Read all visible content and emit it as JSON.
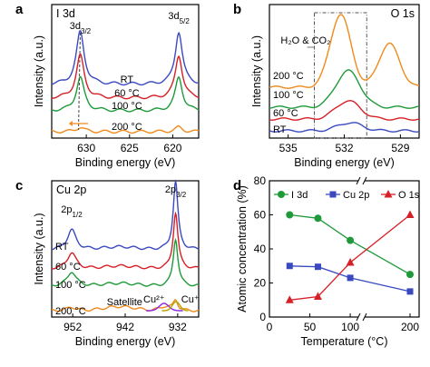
{
  "chart_data": [
    {
      "panel": "a",
      "type": "line",
      "title": "I 3d",
      "xlabel": "Binding energy (eV)",
      "ylabel": "Intensity (a.u.)",
      "xlim": [
        634,
        617
      ],
      "x_reversed": true,
      "xticks": [
        630,
        625,
        620
      ],
      "peaks": [
        {
          "label": "3d",
          "sub": "3/2",
          "x": 630.7
        },
        {
          "label": "3d",
          "sub": "5/2",
          "x": 619.3
        }
      ],
      "series": [
        {
          "name": "RT",
          "color": "#3a49c0",
          "peak_heights": [
            1.0,
            1.0
          ]
        },
        {
          "name": "60 °C",
          "color": "#d62027",
          "peak_heights": [
            0.85,
            0.85
          ]
        },
        {
          "name": "100 °C",
          "color": "#1f9a3a",
          "peak_heights": [
            0.7,
            0.7
          ]
        },
        {
          "name": "200 °C",
          "color": "#f08a1c",
          "peak_heights": [
            0.08,
            0.08
          ]
        }
      ],
      "annotations": []
    },
    {
      "panel": "b",
      "type": "line",
      "title": "O 1s",
      "xlabel": "Binding energy (eV)",
      "ylabel": "Intensity (a.u.)",
      "xlim": [
        536,
        528
      ],
      "x_reversed": true,
      "xticks": [
        535,
        532,
        529
      ],
      "annotations": [
        "H₂O & CO₂"
      ],
      "series": [
        {
          "name": "200 °C",
          "color": "#f08a1c",
          "peaks": [
            {
              "x": 532.2,
              "h": 1.0
            },
            {
              "x": 529.6,
              "h": 0.6
            }
          ]
        },
        {
          "name": "100 °C",
          "color": "#1f9a3a",
          "peaks": [
            {
              "x": 531.8,
              "h": 0.5
            }
          ]
        },
        {
          "name": "60 °C",
          "color": "#d62027",
          "peaks": [
            {
              "x": 531.8,
              "h": 0.35
            }
          ]
        },
        {
          "name": "RT",
          "color": "#3a49c0",
          "peaks": [
            {
              "x": 531.7,
              "h": 0.25
            }
          ]
        }
      ]
    },
    {
      "panel": "c",
      "type": "line",
      "title": "Cu 2p",
      "xlabel": "Binding energy (eV)",
      "ylabel": "Intensity (a.u.)",
      "xlim": [
        956,
        928
      ],
      "x_reversed": true,
      "xticks": [
        952,
        942,
        932
      ],
      "peaks": [
        {
          "label": "2p",
          "sub": "1/2",
          "x": 952.2
        },
        {
          "label": "2p",
          "sub": "3/2",
          "x": 932.4
        }
      ],
      "annotations": [
        "Satellite",
        "Cu²⁺",
        "Cu⁺"
      ],
      "series": [
        {
          "name": "RT",
          "color": "#3a49c0"
        },
        {
          "name": "60 °C",
          "color": "#d62027"
        },
        {
          "name": "100 °C",
          "color": "#1f9a3a"
        },
        {
          "name": "200 °C",
          "color": "#f08a1c"
        }
      ]
    },
    {
      "panel": "d",
      "type": "line",
      "xlabel": "Temperature (°C)",
      "ylabel": "Atomic concentration (%)",
      "ylim": [
        0,
        80
      ],
      "yticks": [
        0,
        20,
        40,
        60,
        80
      ],
      "xticks": [
        0,
        50,
        100,
        200
      ],
      "axis_break": true,
      "legend": "top",
      "x": [
        25,
        60,
        100,
        200
      ],
      "series": [
        {
          "name": "I 3d",
          "color": "#1f9a3a",
          "marker": "circle",
          "values": [
            60,
            58,
            45,
            25
          ]
        },
        {
          "name": "Cu 2p",
          "color": "#3a49c0",
          "marker": "square",
          "values": [
            30,
            29.5,
            23,
            15
          ]
        },
        {
          "name": "O 1s",
          "color": "#d62027",
          "marker": "triangle",
          "values": [
            10,
            12,
            32,
            60
          ]
        }
      ]
    }
  ]
}
